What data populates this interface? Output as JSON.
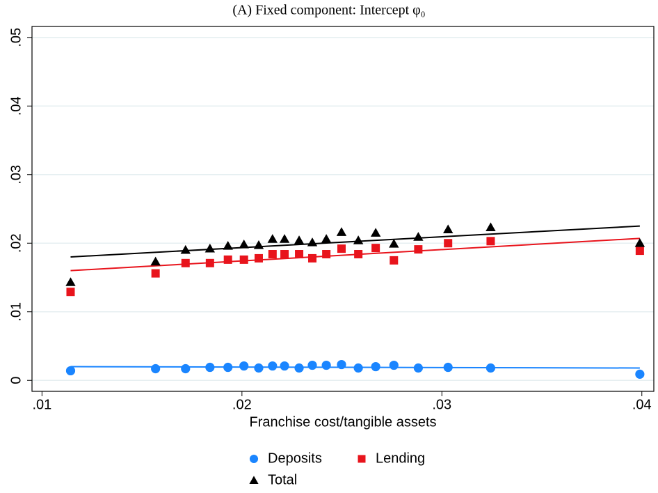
{
  "chart_data": {
    "type": "scatter",
    "title": "(A) Fixed component: Intercept φ₀",
    "x_label": "Franchise cost/tangible assets",
    "x": [
      0.01143,
      0.01568,
      0.01718,
      0.0184,
      0.0193,
      0.0201,
      0.02084,
      0.02153,
      0.02213,
      0.02286,
      0.02352,
      0.02422,
      0.02498,
      0.02582,
      0.02669,
      0.0276,
      0.02882,
      0.03031,
      0.03244,
      0.0399
    ],
    "series": [
      {
        "name": "Deposits",
        "color": "#1a85ff",
        "marker": "circle",
        "values": [
          0.0014,
          0.0017,
          0.0017,
          0.0019,
          0.0019,
          0.0021,
          0.0018,
          0.0021,
          0.0021,
          0.0018,
          0.0022,
          0.0022,
          0.0023,
          0.0018,
          0.002,
          0.0022,
          0.0018,
          0.0019,
          0.0018,
          0.0009
        ],
        "fit_x": [
          0.01143,
          0.0399
        ],
        "fit_values": [
          0.002,
          0.0018
        ]
      },
      {
        "name": "Lending",
        "color": "#e8141c",
        "marker": "square",
        "values": [
          0.0129,
          0.0156,
          0.0171,
          0.0171,
          0.0176,
          0.0176,
          0.0178,
          0.0184,
          0.0184,
          0.0184,
          0.0178,
          0.0184,
          0.0192,
          0.0184,
          0.0193,
          0.0175,
          0.0191,
          0.02,
          0.0203,
          0.0189
        ],
        "fit_x": [
          0.01143,
          0.0399
        ],
        "fit_values": [
          0.016,
          0.0207
        ]
      },
      {
        "name": "Total",
        "color": "#000000",
        "marker": "triangle",
        "values": [
          0.0143,
          0.0173,
          0.019,
          0.0192,
          0.0196,
          0.0198,
          0.0197,
          0.0206,
          0.0206,
          0.0204,
          0.0201,
          0.0206,
          0.0216,
          0.0204,
          0.0215,
          0.0199,
          0.0209,
          0.022,
          0.0223,
          0.02
        ],
        "fit_x": [
          0.01143,
          0.0399
        ],
        "fit_values": [
          0.018,
          0.0225
        ]
      }
    ],
    "xlim": [
      0.0095,
      0.0406
    ],
    "ylim": [
      -0.0016,
      0.0516
    ],
    "xticks": [
      {
        "value": 0.01,
        "label": ".01"
      },
      {
        "value": 0.02,
        "label": ".02"
      },
      {
        "value": 0.03,
        "label": ".03"
      },
      {
        "value": 0.04,
        "label": ".04"
      }
    ],
    "yticks": [
      0,
      {
        "value": 0.01,
        "label": ".01"
      },
      {
        "value": 0.02,
        "label": ".02"
      },
      {
        "value": 0.03,
        "label": ".03"
      },
      {
        "value": 0.04,
        "label": ".04"
      },
      {
        "value": 0.05,
        "label": ".05"
      }
    ],
    "grid": true,
    "legend": "bottom"
  }
}
